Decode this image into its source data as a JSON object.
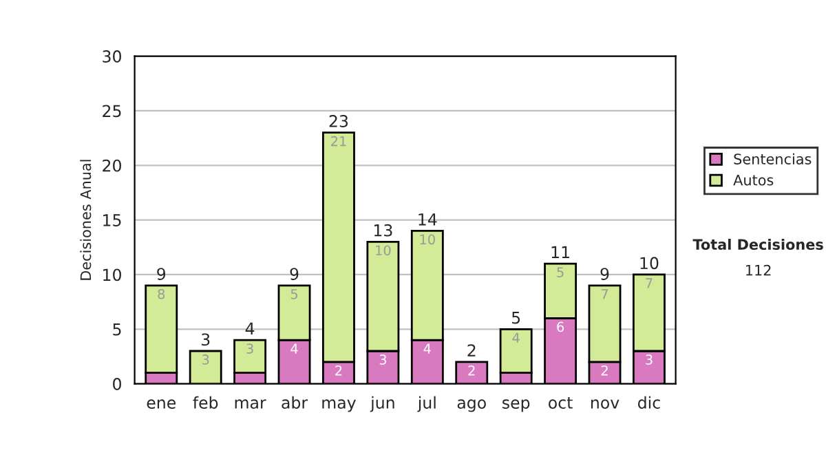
{
  "chart_data": {
    "type": "bar",
    "stacked": true,
    "ylabel": "Decisiones Anual",
    "categories": [
      "ene",
      "feb",
      "mar",
      "abr",
      "may",
      "jun",
      "jul",
      "ago",
      "sep",
      "oct",
      "nov",
      "dic"
    ],
    "series": [
      {
        "name": "Sentencias",
        "color": "#d97ac0",
        "values": [
          1,
          0,
          1,
          4,
          2,
          3,
          4,
          2,
          1,
          6,
          2,
          3
        ],
        "value_labels": [
          null,
          null,
          null,
          "4",
          "2",
          "3",
          "4",
          "2",
          null,
          "6",
          "2",
          "3"
        ]
      },
      {
        "name": "Autos",
        "color": "#d3ea96",
        "values": [
          8,
          3,
          3,
          5,
          21,
          10,
          10,
          0,
          4,
          5,
          7,
          7
        ],
        "value_labels": [
          "8",
          "3",
          "3",
          "5",
          "21",
          "10",
          "10",
          null,
          "4",
          "5",
          "7",
          "7"
        ]
      }
    ],
    "totals": [
      "9",
      "3",
      "4",
      "9",
      "23",
      "13",
      "14",
      "2",
      "5",
      "11",
      "9",
      "10"
    ],
    "ylim": [
      0,
      30
    ],
    "yticks": [
      0,
      5,
      10,
      15,
      20,
      25,
      30
    ],
    "grid": "y",
    "legend": "right",
    "annotations": [
      "Total Decisiones",
      "112"
    ]
  }
}
